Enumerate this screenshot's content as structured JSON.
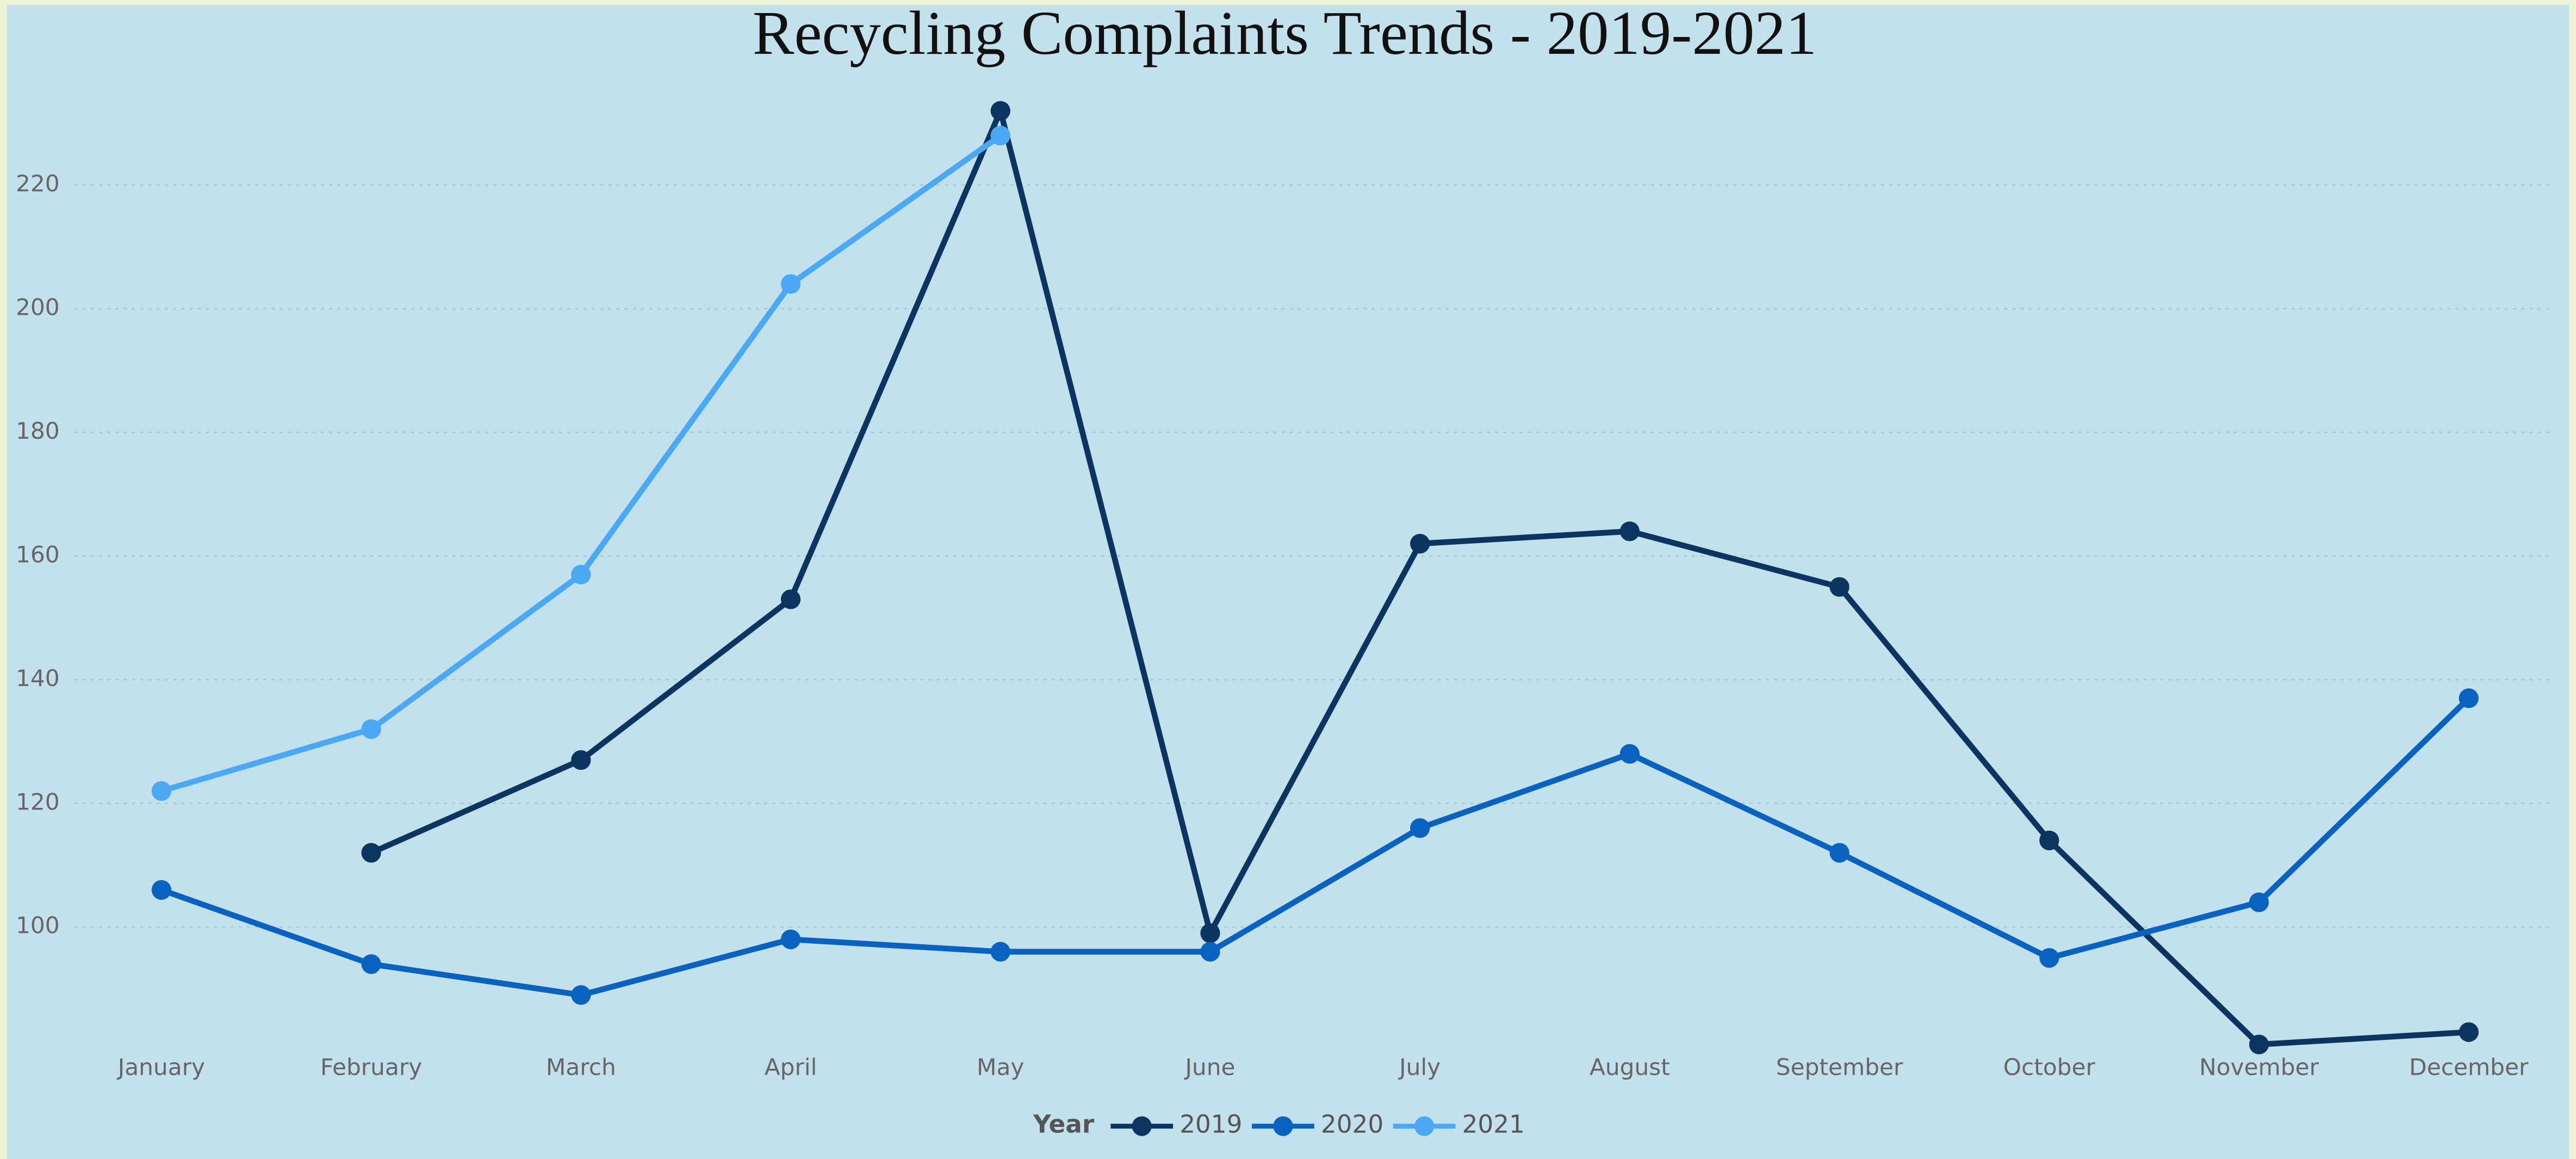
{
  "chart_data": {
    "type": "line",
    "title": "Recycling Complaints Trends - 2019-2021",
    "categories": [
      "January",
      "February",
      "March",
      "April",
      "May",
      "June",
      "July",
      "August",
      "September",
      "October",
      "November",
      "December"
    ],
    "series": [
      {
        "name": "2019",
        "color": "#0b3560",
        "values": [
          null,
          112,
          127,
          153,
          232,
          99,
          162,
          164,
          155,
          114,
          81,
          83
        ]
      },
      {
        "name": "2020",
        "color": "#0a62c0",
        "values": [
          106,
          94,
          89,
          98,
          96,
          96,
          116,
          128,
          112,
          95,
          104,
          137
        ]
      },
      {
        "name": "2021",
        "color": "#4aa8f5",
        "values": [
          122,
          132,
          157,
          204,
          228,
          null,
          null,
          null,
          null,
          null,
          null,
          null
        ]
      }
    ],
    "legend_title": "Year",
    "ylim": [
      80,
      234
    ],
    "yticks": [
      100,
      120,
      140,
      160,
      180,
      200,
      220
    ],
    "grid": true
  }
}
